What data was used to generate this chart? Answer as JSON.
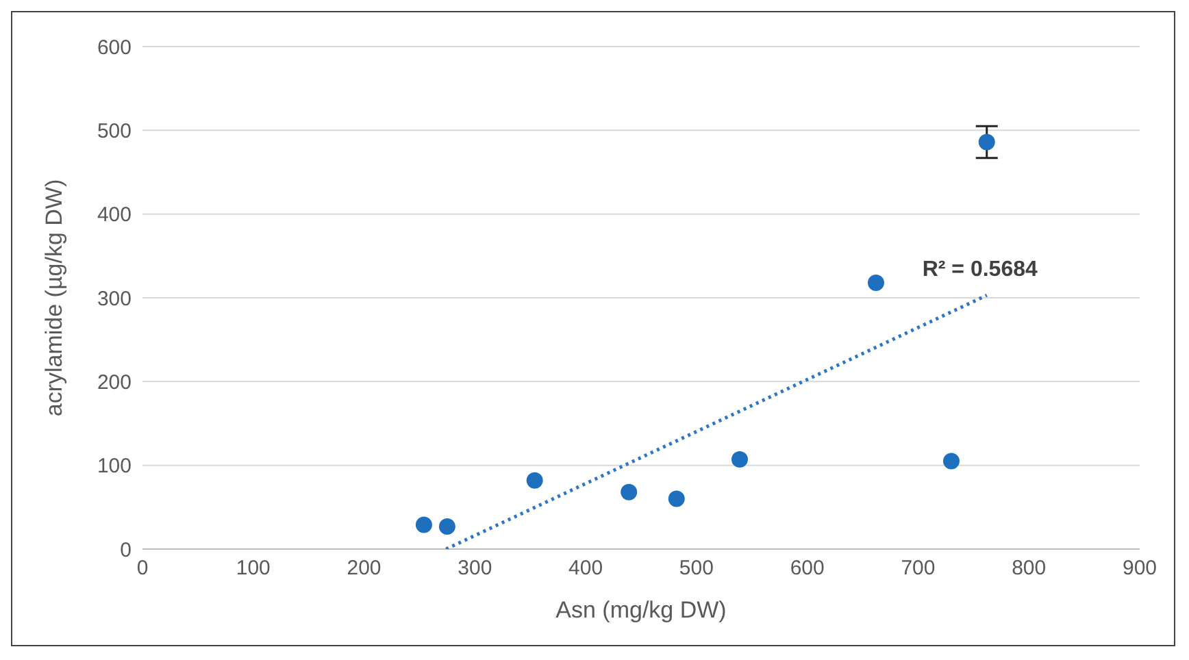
{
  "chart_data": {
    "type": "scatter",
    "xlabel": "Asn (mg/kg DW)",
    "ylabel": "acrylamide (µg/kg DW)",
    "xlim": [
      0,
      900
    ],
    "xticks": [
      0,
      100,
      200,
      300,
      400,
      500,
      600,
      700,
      800,
      900
    ],
    "ylim": [
      0,
      600
    ],
    "yticks": [
      0,
      100,
      200,
      300,
      400,
      500,
      600
    ],
    "grid": "y",
    "legend": false,
    "series": [
      {
        "color": "#1f6fbf",
        "marker": "circle",
        "x": [
          254,
          275,
          354,
          439,
          482,
          539,
          662,
          730,
          762
        ],
        "values": [
          29,
          27,
          82,
          68,
          60,
          107,
          318,
          105,
          486
        ],
        "errors": [
          null,
          null,
          null,
          null,
          null,
          null,
          null,
          null,
          19
        ]
      },
      {
        "type": "line",
        "color": "#2e75c6",
        "marker": "none",
        "line_style": "dotted",
        "x": [
          274,
          762
        ],
        "values": [
          0,
          303
        ]
      }
    ],
    "annotations": [
      {
        "text": "R² = 0.5684",
        "x": 762,
        "y": 303
      }
    ]
  }
}
